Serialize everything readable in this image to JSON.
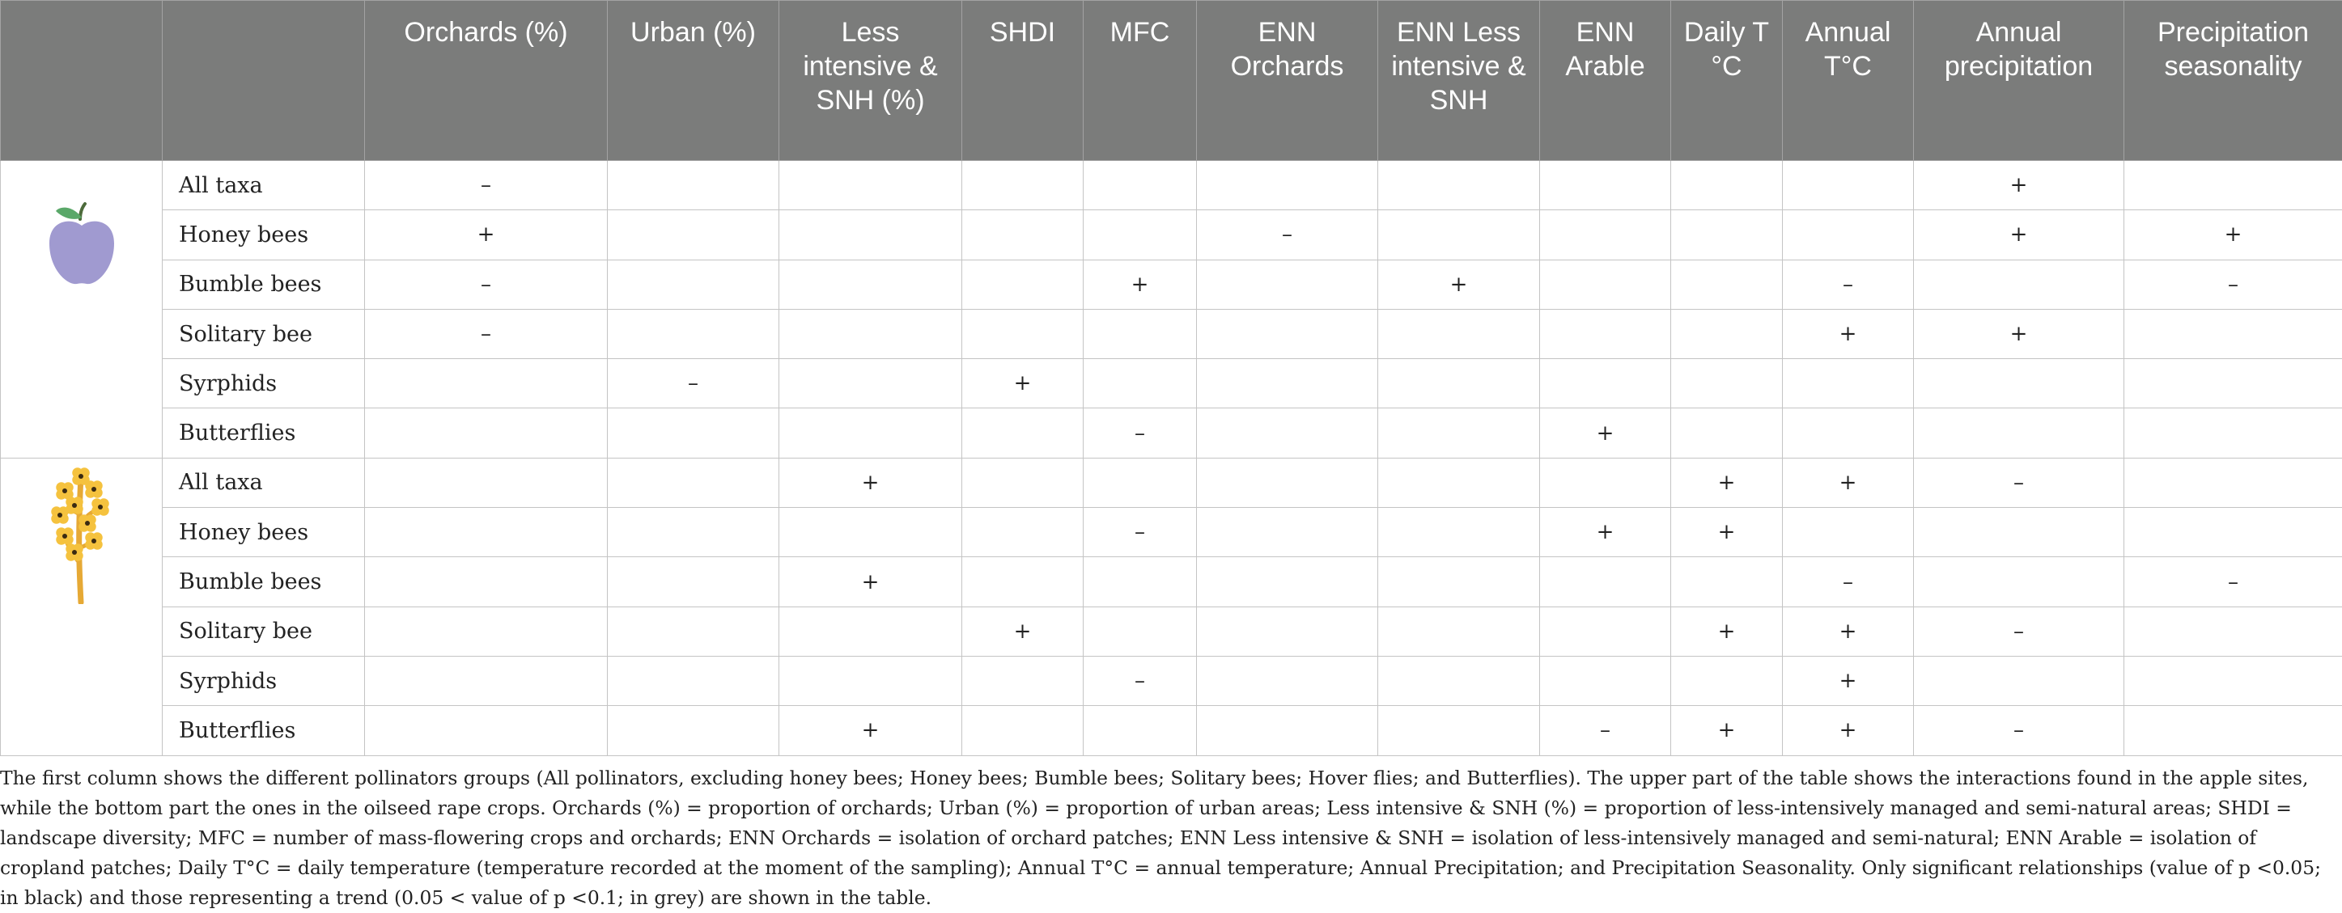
{
  "columns": [
    "",
    "",
    "Orchards (%)",
    "Urban (%)",
    "Less intensive & SNH (%)",
    "SHDI",
    "MFC",
    "ENN Orchards",
    "ENN Less intensive & SNH",
    "ENN Arable",
    "Daily T °C",
    "Annual T°C",
    "Annual precipitation",
    "Precipitation seasonality"
  ],
  "crops": [
    {
      "name": "apple-icon",
      "icon_colors": {
        "fruit": "#a09ad0",
        "leaf": "#5aa869",
        "stem": "#4d6b3b"
      },
      "rows": [
        {
          "taxon": "All taxa",
          "cells": [
            {
              "v": "–"
            },
            {},
            {},
            {},
            {},
            {},
            {},
            {},
            {},
            {},
            {
              "v": "+",
              "grey": true
            },
            {}
          ]
        },
        {
          "taxon": "Honey bees",
          "cells": [
            {
              "v": "+",
              "grey": true
            },
            {},
            {},
            {},
            {},
            {
              "v": "–"
            },
            {},
            {},
            {},
            {},
            {
              "v": "+"
            },
            {
              "v": "+"
            }
          ]
        },
        {
          "taxon": "Bumble bees",
          "cells": [
            {
              "v": "–"
            },
            {},
            {},
            {},
            {
              "v": "+"
            },
            {},
            {
              "v": "+"
            },
            {},
            {},
            {
              "v": "–"
            },
            {},
            {
              "v": "–"
            }
          ]
        },
        {
          "taxon": "Solitary bee",
          "cells": [
            {
              "v": "–"
            },
            {},
            {},
            {},
            {},
            {},
            {},
            {},
            {},
            {
              "v": "+"
            },
            {
              "v": "+"
            },
            {}
          ]
        },
        {
          "taxon": "Syrphids",
          "cells": [
            {},
            {
              "v": "–"
            },
            {},
            {
              "v": "+"
            },
            {},
            {},
            {},
            {},
            {},
            {},
            {},
            {}
          ]
        },
        {
          "taxon": "Butterflies",
          "cells": [
            {},
            {},
            {},
            {},
            {
              "v": "–",
              "grey": true
            },
            {},
            {},
            {
              "v": "+"
            },
            {},
            {},
            {},
            {}
          ]
        }
      ]
    },
    {
      "name": "oilseed-rape-icon",
      "icon_colors": {
        "flower": "#f5c23e",
        "center": "#3a2a12",
        "stem": "#e6a935"
      },
      "rows": [
        {
          "taxon": "All taxa",
          "cells": [
            {},
            {},
            {
              "v": "+"
            },
            {},
            {},
            {},
            {},
            {},
            {
              "v": "+"
            },
            {
              "v": "+"
            },
            {
              "v": "–"
            },
            {}
          ]
        },
        {
          "taxon": "Honey bees",
          "cells": [
            {},
            {},
            {},
            {},
            {
              "v": "–"
            },
            {},
            {},
            {
              "v": "+"
            },
            {
              "v": "+"
            },
            {},
            {},
            {}
          ]
        },
        {
          "taxon": "Bumble bees",
          "cells": [
            {},
            {},
            {
              "v": "+"
            },
            {},
            {},
            {},
            {},
            {},
            {},
            {
              "v": "–"
            },
            {},
            {
              "v": "–"
            }
          ]
        },
        {
          "taxon": "Solitary bee",
          "cells": [
            {},
            {},
            {},
            {
              "v": "+",
              "grey": true
            },
            {},
            {},
            {},
            {},
            {
              "v": "+"
            },
            {
              "v": "+"
            },
            {
              "v": "–"
            },
            {}
          ]
        },
        {
          "taxon": "Syrphids",
          "cells": [
            {},
            {},
            {},
            {},
            {
              "v": "–"
            },
            {},
            {},
            {},
            {},
            {
              "v": "+"
            },
            {},
            {}
          ]
        },
        {
          "taxon": "Butterflies",
          "cells": [
            {},
            {},
            {
              "v": "+"
            },
            {},
            {},
            {},
            {},
            {
              "v": "–"
            },
            {
              "v": "+"
            },
            {
              "v": "+"
            },
            {
              "v": "–"
            },
            {}
          ]
        }
      ]
    }
  ],
  "note": "The first column shows the different pollinators groups (All pollinators, excluding honey bees; Honey bees; Bumble bees; Solitary bees; Hover flies; and Butterflies). The upper part of the table shows the interactions found in the apple sites, while the bottom part the ones in the oilseed rape crops. Orchards (%) = proportion of orchards; Urban (%) = proportion of urban areas; Less intensive & SNH (%) = proportion of less-intensively managed and semi-natural areas; SHDI = landscape diversity; MFC = number of mass-flowering crops and orchards; ENN Orchards = isolation of orchard patches; ENN Less intensive & SNH = isolation of less-intensively managed and semi-natural; ENN Arable = isolation of cropland patches; Daily T°C = daily temperature (temperature recorded at the moment of the sampling); Annual T°C = annual temperature; Annual Precipitation; and Precipitation Seasonality. Only significant relationships (value of p <0.05; in black) and those representing a trend (0.05 < value of p <0.1; in grey) are shown in the table."
}
